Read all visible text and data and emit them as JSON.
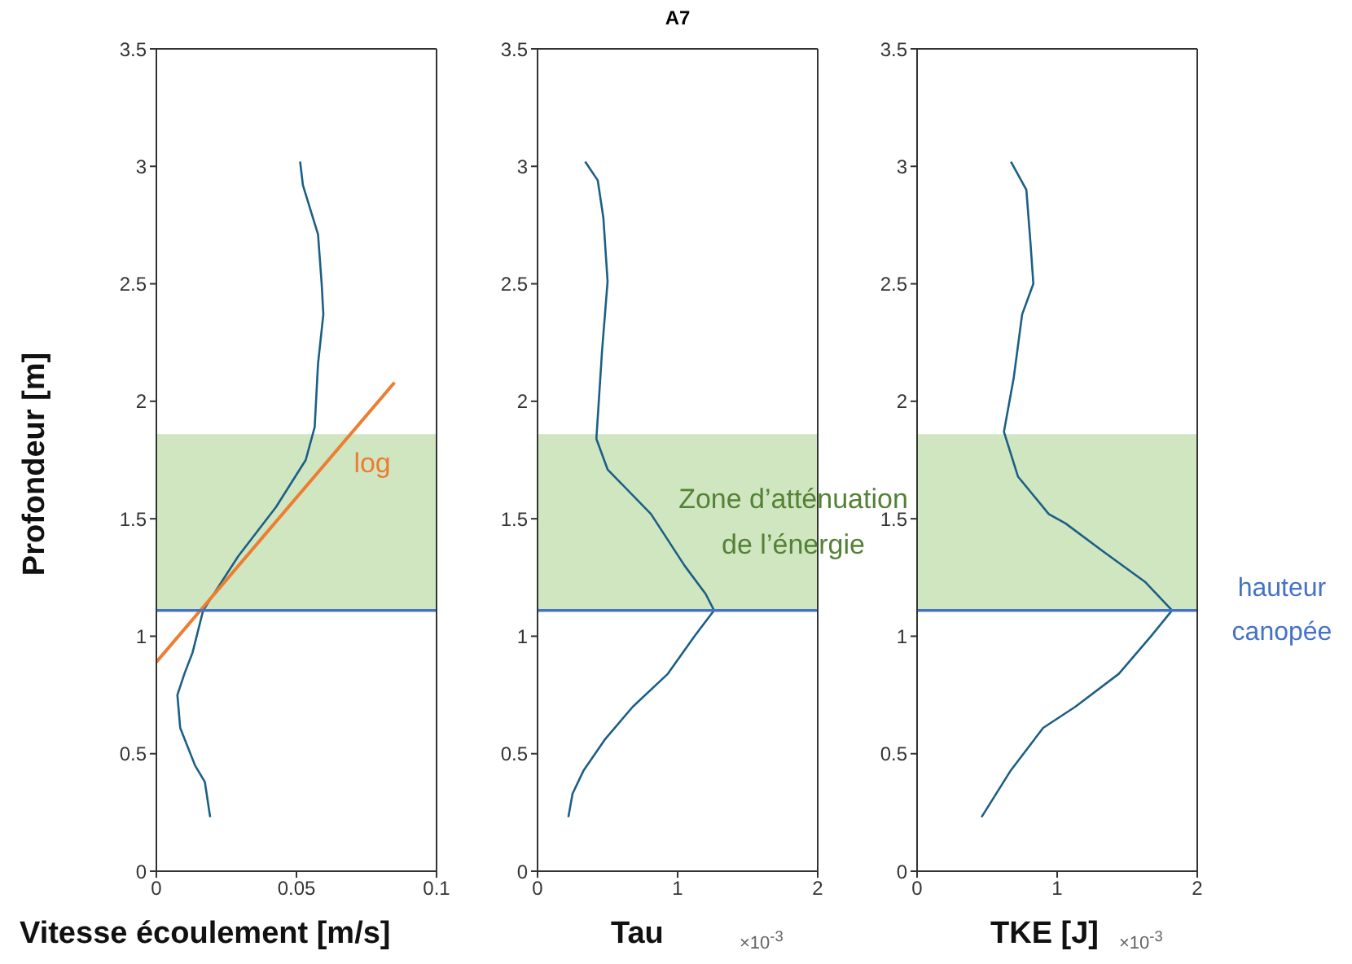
{
  "chart_data": [
    {
      "type": "line",
      "xlabel": "Vitesse écoulement [m/s]",
      "ylabel": "Profondeur [m]",
      "xlim": [
        0,
        0.1
      ],
      "xticks": [
        0,
        0.05,
        0.1
      ],
      "ylim": [
        0,
        3.5
      ],
      "yticks": [
        0,
        0.5,
        1,
        1.5,
        2,
        2.5,
        3,
        3.5
      ],
      "grid": false,
      "legend": false,
      "marker": "none",
      "series": [
        {
          "color": "#1b5f86",
          "x": [
            0.0513,
            0.0523,
            0.0577,
            0.059,
            0.0596,
            0.0577,
            0.0565,
            0.0533,
            0.0427,
            0.0292,
            0.0167,
            0.0129,
            0.01,
            0.0075,
            0.0085,
            0.0138,
            0.0173,
            0.0192
          ],
          "values": [
            3.02,
            2.92,
            2.71,
            2.5,
            2.37,
            2.16,
            1.89,
            1.75,
            1.55,
            1.34,
            1.11,
            0.93,
            0.84,
            0.75,
            0.61,
            0.45,
            0.38,
            0.23
          ]
        },
        {
          "type": "line",
          "name": "log",
          "color": "#ed7d31",
          "x": [
            0,
            0.085
          ],
          "values": [
            0.89,
            2.08
          ]
        }
      ],
      "bands": [
        {
          "axis": "y",
          "from": 1.11,
          "to": 1.86,
          "color": "#a9d18e"
        }
      ],
      "ref_lines": [
        {
          "axis": "y",
          "value": 1.11,
          "color": "#4472c4"
        }
      ]
    },
    {
      "type": "line",
      "title": "A7",
      "xlabel": "Tau",
      "annotations": [
        "×10$^{-3}$"
      ],
      "xlim": [
        0,
        2
      ],
      "xticks": [
        0,
        1,
        2
      ],
      "ylim": [
        0,
        3.5
      ],
      "yticks": [
        0,
        0.5,
        1,
        1.5,
        2,
        2.5,
        3,
        3.5
      ],
      "grid": false,
      "legend": false,
      "marker": "none",
      "series": [
        {
          "color": "#1b5f86",
          "x": [
            0.34,
            0.43,
            0.47,
            0.5,
            0.46,
            0.42,
            0.5,
            0.81,
            1.05,
            1.2,
            1.26,
            1.12,
            0.93,
            0.68,
            0.48,
            0.33,
            0.25,
            0.22
          ],
          "values": [
            3.02,
            2.94,
            2.78,
            2.51,
            2.21,
            1.84,
            1.71,
            1.52,
            1.3,
            1.18,
            1.11,
            1.0,
            0.84,
            0.7,
            0.56,
            0.43,
            0.33,
            0.23
          ]
        }
      ],
      "bands": [
        {
          "axis": "y",
          "from": 1.11,
          "to": 1.86,
          "color": "#a9d18e",
          "label": "Zone d’atténuation de l’énergie"
        }
      ],
      "ref_lines": [
        {
          "axis": "y",
          "value": 1.11,
          "color": "#4472c4"
        }
      ]
    },
    {
      "type": "line",
      "xlabel": "TKE [J]",
      "annotations": [
        "×10$^{-3}$"
      ],
      "xlim": [
        0,
        2
      ],
      "xticks": [
        0,
        1,
        2
      ],
      "ylim": [
        0,
        3.5
      ],
      "yticks": [
        0,
        0.5,
        1,
        1.5,
        2,
        2.5,
        3,
        3.5
      ],
      "grid": false,
      "legend": false,
      "marker": "none",
      "series": [
        {
          "color": "#1b5f86",
          "x": [
            0.67,
            0.78,
            0.81,
            0.83,
            0.75,
            0.69,
            0.62,
            0.72,
            0.94,
            1.06,
            1.33,
            1.63,
            1.82,
            1.67,
            1.44,
            1.13,
            0.9,
            0.67,
            0.46
          ],
          "values": [
            3.02,
            2.9,
            2.67,
            2.5,
            2.37,
            2.1,
            1.87,
            1.68,
            1.52,
            1.48,
            1.36,
            1.23,
            1.11,
            1.0,
            0.84,
            0.7,
            0.61,
            0.43,
            0.23
          ]
        }
      ],
      "bands": [
        {
          "axis": "y",
          "from": 1.11,
          "to": 1.86,
          "color": "#a9d18e"
        }
      ],
      "ref_lines": [
        {
          "axis": "y",
          "value": 1.11,
          "color": "#4472c4",
          "label": "hauteur canopée"
        }
      ]
    }
  ]
}
